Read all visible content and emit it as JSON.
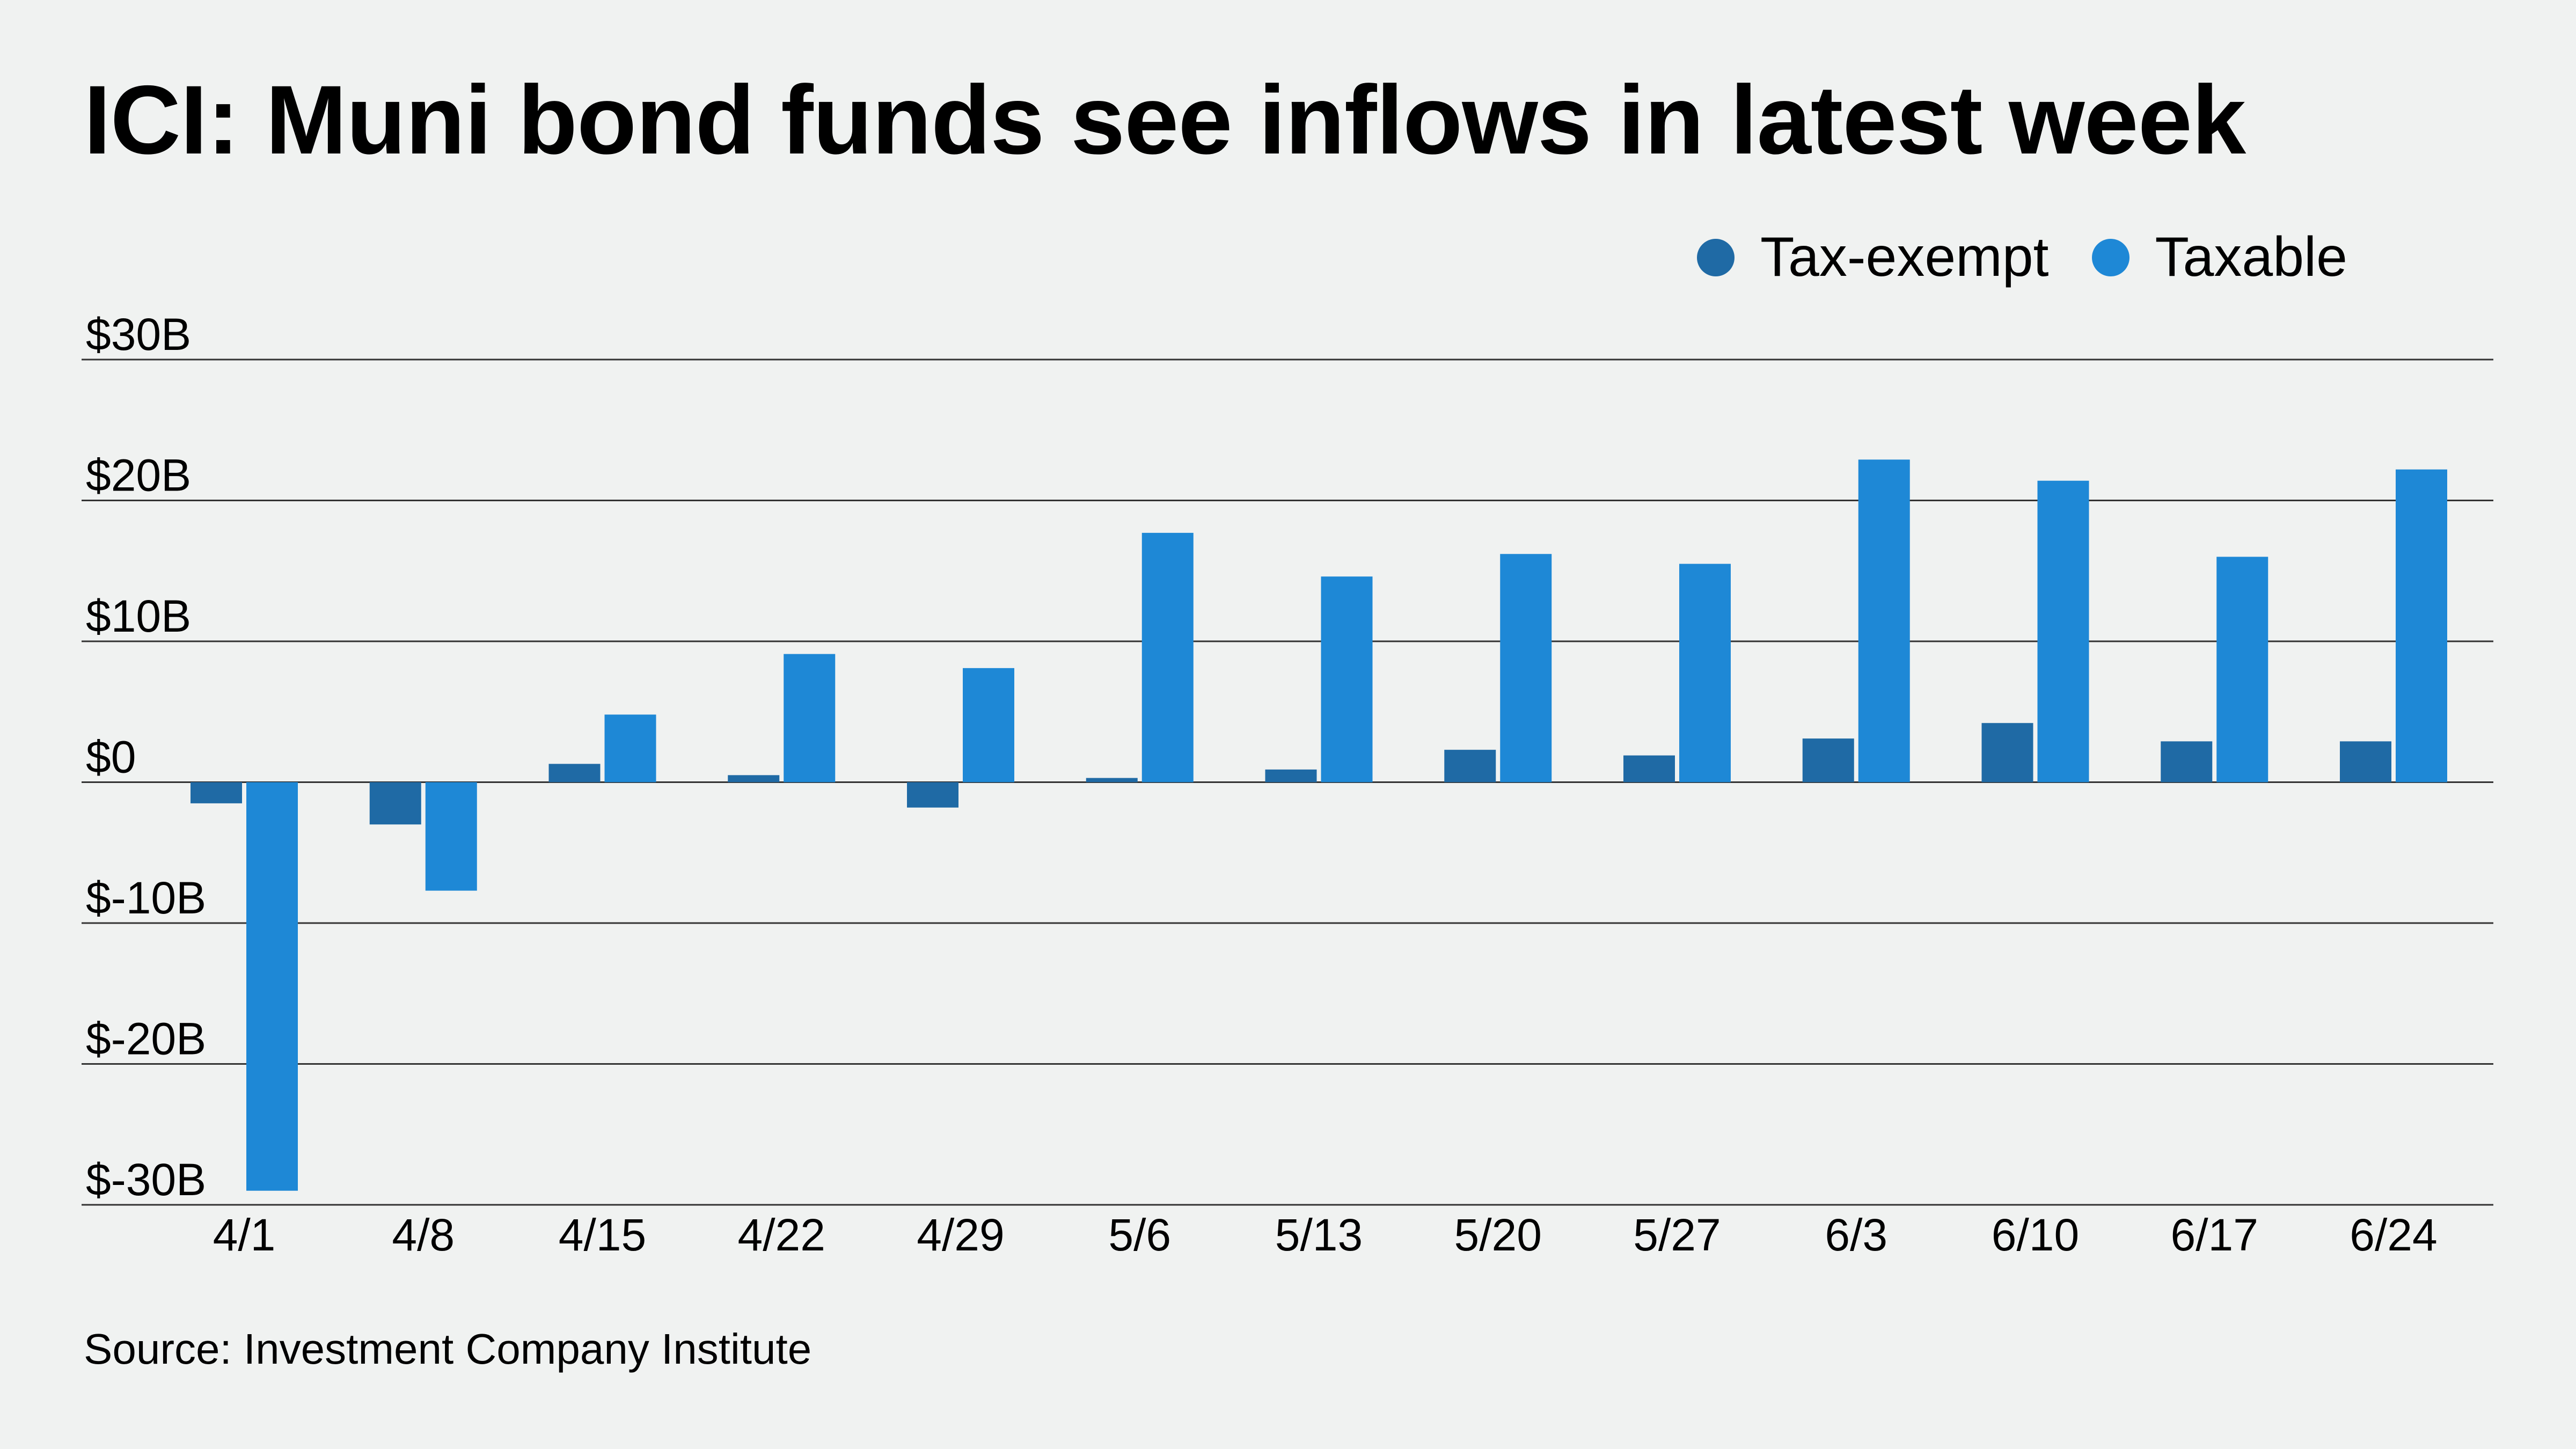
{
  "title": "ICI: Muni bond funds see inflows in latest week",
  "source": "Source: Investment Company Institute",
  "colors": {
    "background": "#f0f2f1",
    "tax_exempt": "#1f6aa5",
    "taxable": "#1e88d6",
    "gridline": "#333333"
  },
  "chart_data": {
    "type": "bar",
    "title": "ICI: Muni bond funds see inflows in latest week",
    "categories": [
      "4/1",
      "4/8",
      "4/15",
      "4/22",
      "4/29",
      "5/6",
      "5/13",
      "5/20",
      "5/27",
      "6/3",
      "6/10",
      "6/17",
      "6/24"
    ],
    "y_tick_labels": [
      "$30B",
      "$20B",
      "$10B",
      "$0",
      "$-10B",
      "$-20B",
      "$-30B"
    ],
    "y_ticks": [
      30,
      20,
      10,
      0,
      -10,
      -20,
      -30
    ],
    "ylim": [
      -30,
      30
    ],
    "grid": true,
    "legend_position": "top-right",
    "series": [
      {
        "name": "Tax-exempt",
        "values": [
          -1.5,
          -3.0,
          1.3,
          0.5,
          -1.8,
          0.3,
          0.9,
          2.3,
          1.9,
          3.1,
          4.2,
          2.9,
          2.9
        ]
      },
      {
        "name": "Taxable",
        "values": [
          -29.0,
          -7.7,
          4.8,
          9.1,
          8.1,
          17.7,
          14.6,
          16.2,
          15.5,
          22.9,
          21.4,
          16.0,
          22.2
        ]
      }
    ],
    "ylabel": "",
    "xlabel": ""
  }
}
